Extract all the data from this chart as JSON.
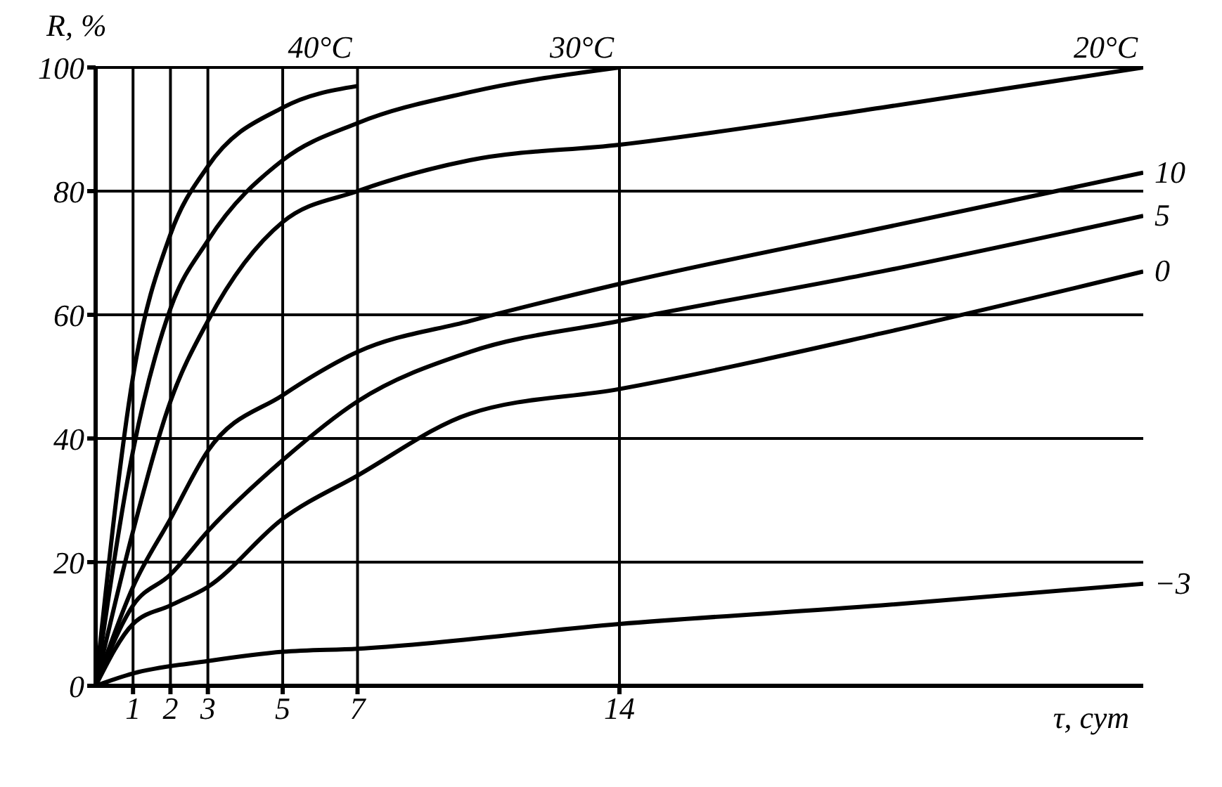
{
  "chart_data": {
    "type": "line",
    "xlabel": "τ, сут",
    "ylabel": "R, %",
    "xlim": [
      0,
      28
    ],
    "xticks": [
      1,
      2,
      3,
      5,
      7,
      14
    ],
    "ylim": [
      0,
      100
    ],
    "yticks": [
      0,
      20,
      40,
      60,
      80,
      100
    ],
    "grid": true,
    "marker": "none",
    "line_style": "solid",
    "legend": false,
    "series": [
      {
        "name": "40°C",
        "color": "#000000",
        "x": [
          0,
          1,
          2,
          3,
          5,
          7
        ],
        "values": [
          0,
          50,
          73,
          84,
          93.5,
          97
        ]
      },
      {
        "name": "30°C",
        "color": "#000000",
        "x": [
          0,
          1,
          2,
          3,
          5,
          7,
          10,
          14
        ],
        "values": [
          0,
          38,
          61,
          72,
          85,
          91,
          96,
          100
        ]
      },
      {
        "name": "20°C",
        "color": "#000000",
        "x": [
          0,
          1,
          2,
          3,
          5,
          7,
          10,
          14,
          21,
          28
        ],
        "values": [
          0,
          25,
          46,
          59,
          75,
          80,
          85,
          87.5,
          93.5,
          100
        ]
      },
      {
        "name": "10",
        "color": "#000000",
        "x": [
          0,
          1,
          2,
          3,
          5,
          7,
          10,
          14,
          21,
          28
        ],
        "values": [
          0,
          16,
          27,
          38,
          47,
          54,
          59,
          65,
          74,
          83
        ]
      },
      {
        "name": "5",
        "color": "#000000",
        "x": [
          0,
          1,
          2,
          3,
          5,
          7,
          10,
          14,
          21,
          28
        ],
        "values": [
          0,
          13,
          18,
          25,
          36.5,
          46,
          54,
          59,
          67,
          76
        ]
      },
      {
        "name": "0",
        "color": "#000000",
        "x": [
          0,
          1,
          2,
          3,
          5,
          7,
          10,
          14,
          21,
          28
        ],
        "values": [
          0,
          10,
          13,
          16,
          27,
          34,
          44,
          48,
          57,
          67
        ]
      },
      {
        "name": "−3",
        "color": "#000000",
        "x": [
          0,
          1,
          3,
          5,
          7,
          14,
          21,
          28
        ],
        "values": [
          0,
          2,
          4,
          5.5,
          6,
          10,
          13,
          16.5
        ]
      }
    ]
  }
}
